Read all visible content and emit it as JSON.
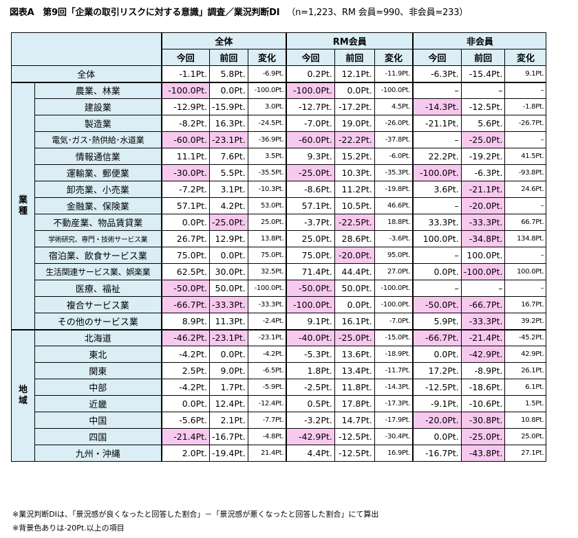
{
  "title": {
    "main": "図表A　第9回「企業の取引リスクに対する意識」調査／業況判断DI",
    "sub": "（n=1,223、RM 会員=990、非会員=233）"
  },
  "table": {
    "groups": [
      "全体",
      "RM会員",
      "非会員"
    ],
    "subheaders": [
      "今回",
      "前回",
      "変化"
    ],
    "overall_label": "全体",
    "section_industry": "業\n種",
    "section_region": "地\n域",
    "rows": [
      {
        "label": "全体",
        "section": "overall",
        "cells": [
          "-1.1Pt.",
          "5.8Pt.",
          "-6.9Pt.",
          "0.2Pt.",
          "12.1Pt.",
          "-11.9Pt.",
          "-6.3Pt.",
          "-15.4Pt.",
          "9.1Pt."
        ],
        "hl": []
      },
      {
        "label": "農業、林業",
        "section": "industry",
        "cells": [
          "-100.0Pt.",
          "0.0Pt.",
          "-100.0Pt.",
          "-100.0Pt.",
          "0.0Pt.",
          "-100.0Pt.",
          "–",
          "–",
          "–"
        ],
        "hl": [
          0,
          3
        ]
      },
      {
        "label": "建設業",
        "section": "industry",
        "cells": [
          "-12.9Pt.",
          "-15.9Pt.",
          "3.0Pt.",
          "-12.7Pt.",
          "-17.2Pt.",
          "4.5Pt.",
          "-14.3Pt.",
          "-12.5Pt.",
          "-1.8Pt."
        ],
        "hl": [
          6
        ]
      },
      {
        "label": "製造業",
        "section": "industry",
        "cells": [
          "-8.2Pt.",
          "16.3Pt.",
          "-24.5Pt.",
          "-7.0Pt.",
          "19.0Pt.",
          "-26.0Pt.",
          "-21.1Pt.",
          "5.6Pt.",
          "-26.7Pt."
        ],
        "hl": []
      },
      {
        "label": "電気･ガス･熱供給･水道業",
        "section": "industry",
        "size": "mid",
        "cells": [
          "-60.0Pt.",
          "-23.1Pt.",
          "-36.9Pt.",
          "-60.0Pt.",
          "-22.2Pt.",
          "-37.8Pt.",
          "–",
          "-25.0Pt.",
          "–"
        ],
        "hl": [
          0,
          1,
          3,
          4,
          7
        ]
      },
      {
        "label": "情報通信業",
        "section": "industry",
        "cells": [
          "11.1Pt.",
          "7.6Pt.",
          "3.5Pt.",
          "9.3Pt.",
          "15.2Pt.",
          "-6.0Pt.",
          "22.2Pt.",
          "-19.2Pt.",
          "41.5Pt."
        ],
        "hl": []
      },
      {
        "label": "運輸業、郵便業",
        "section": "industry",
        "cells": [
          "-30.0Pt.",
          "5.5Pt.",
          "-35.5Pt.",
          "-25.0Pt.",
          "10.3Pt.",
          "-35.3Pt.",
          "-100.0Pt.",
          "-6.3Pt.",
          "-93.8Pt."
        ],
        "hl": [
          0,
          3,
          6
        ]
      },
      {
        "label": "卸売業、小売業",
        "section": "industry",
        "cells": [
          "-7.2Pt.",
          "3.1Pt.",
          "-10.3Pt.",
          "-8.6Pt.",
          "11.2Pt.",
          "-19.8Pt.",
          "3.6Pt.",
          "-21.1Pt.",
          "24.6Pt."
        ],
        "hl": [
          7
        ]
      },
      {
        "label": "金融業、保険業",
        "section": "industry",
        "cells": [
          "57.1Pt.",
          "4.2Pt.",
          "53.0Pt.",
          "57.1Pt.",
          "10.5Pt.",
          "46.6Pt.",
          "–",
          "-20.0Pt.",
          "–"
        ],
        "hl": [
          7
        ]
      },
      {
        "label": "不動産業、物品賃貸業",
        "section": "industry",
        "cells": [
          "0.0Pt.",
          "-25.0Pt.",
          "25.0Pt.",
          "-3.7Pt.",
          "-22.5Pt.",
          "18.8Pt.",
          "33.3Pt.",
          "-33.3Pt.",
          "66.7Pt."
        ],
        "hl": [
          1,
          4,
          7
        ]
      },
      {
        "label": "学術研究、専門・技術サービス業",
        "section": "industry",
        "size": "small",
        "cells": [
          "26.7Pt.",
          "12.9Pt.",
          "13.8Pt.",
          "25.0Pt.",
          "28.6Pt.",
          "-3.6Pt.",
          "100.0Pt.",
          "-34.8Pt.",
          "134.8Pt."
        ],
        "hl": [
          7
        ]
      },
      {
        "label": "宿泊業、飲食サービス業",
        "section": "industry",
        "cells": [
          "75.0Pt.",
          "0.0Pt.",
          "75.0Pt.",
          "75.0Pt.",
          "-20.0Pt.",
          "95.0Pt.",
          "–",
          "100.0Pt.",
          "–"
        ],
        "hl": [
          4
        ]
      },
      {
        "label": "生活関連サービス業、娯楽業",
        "section": "industry",
        "size": "mid",
        "cells": [
          "62.5Pt.",
          "30.0Pt.",
          "32.5Pt.",
          "71.4Pt.",
          "44.4Pt.",
          "27.0Pt.",
          "0.0Pt.",
          "-100.0Pt.",
          "100.0Pt."
        ],
        "hl": [
          7
        ]
      },
      {
        "label": "医療、福祉",
        "section": "industry",
        "cells": [
          "-50.0Pt.",
          "50.0Pt.",
          "-100.0Pt.",
          "-50.0Pt.",
          "50.0Pt.",
          "-100.0Pt.",
          "–",
          "–",
          "–"
        ],
        "hl": [
          0,
          3
        ]
      },
      {
        "label": "複合サービス業",
        "section": "industry",
        "cells": [
          "-66.7Pt.",
          "-33.3Pt.",
          "-33.3Pt.",
          "-100.0Pt.",
          "0.0Pt.",
          "-100.0Pt.",
          "-50.0Pt.",
          "-66.7Pt.",
          "16.7Pt."
        ],
        "hl": [
          0,
          1,
          3,
          6,
          7
        ]
      },
      {
        "label": "その他のサービス業",
        "section": "industry",
        "cells": [
          "8.9Pt.",
          "11.3Pt.",
          "-2.4Pt.",
          "9.1Pt.",
          "16.1Pt.",
          "-7.0Pt.",
          "5.9Pt.",
          "-33.3Pt.",
          "39.2Pt."
        ],
        "hl": [
          7
        ]
      },
      {
        "label": "北海道",
        "section": "region",
        "cells": [
          "-46.2Pt.",
          "-23.1Pt.",
          "-23.1Pt.",
          "-40.0Pt.",
          "-25.0Pt.",
          "-15.0Pt.",
          "-66.7Pt.",
          "-21.4Pt.",
          "-45.2Pt."
        ],
        "hl": [
          0,
          1,
          3,
          4,
          6,
          7
        ]
      },
      {
        "label": "東北",
        "section": "region",
        "cells": [
          "-4.2Pt.",
          "0.0Pt.",
          "-4.2Pt.",
          "-5.3Pt.",
          "13.6Pt.",
          "-18.9Pt.",
          "0.0Pt.",
          "-42.9Pt.",
          "42.9Pt."
        ],
        "hl": [
          7
        ]
      },
      {
        "label": "関東",
        "section": "region",
        "cells": [
          "2.5Pt.",
          "9.0Pt.",
          "-6.5Pt.",
          "1.8Pt.",
          "13.4Pt.",
          "-11.7Pt.",
          "17.2Pt.",
          "-8.9Pt.",
          "26.1Pt."
        ],
        "hl": []
      },
      {
        "label": "中部",
        "section": "region",
        "cells": [
          "-4.2Pt.",
          "1.7Pt.",
          "-5.9Pt.",
          "-2.5Pt.",
          "11.8Pt.",
          "-14.3Pt.",
          "-12.5Pt.",
          "-18.6Pt.",
          "6.1Pt."
        ],
        "hl": []
      },
      {
        "label": "近畿",
        "section": "region",
        "cells": [
          "0.0Pt.",
          "12.4Pt.",
          "-12.4Pt.",
          "0.5Pt.",
          "17.8Pt.",
          "-17.3Pt.",
          "-9.1Pt.",
          "-10.6Pt.",
          "1.5Pt."
        ],
        "hl": []
      },
      {
        "label": "中国",
        "section": "region",
        "cells": [
          "-5.6Pt.",
          "2.1Pt.",
          "-7.7Pt.",
          "-3.2Pt.",
          "14.7Pt.",
          "-17.9Pt.",
          "-20.0Pt.",
          "-30.8Pt.",
          "10.8Pt."
        ],
        "hl": [
          6,
          7
        ]
      },
      {
        "label": "四国",
        "section": "region",
        "cells": [
          "-21.4Pt.",
          "-16.7Pt.",
          "-4.8Pt.",
          "-42.9Pt.",
          "-12.5Pt.",
          "-30.4Pt.",
          "0.0Pt.",
          "-25.0Pt.",
          "25.0Pt."
        ],
        "hl": [
          0,
          3,
          7
        ]
      },
      {
        "label": "九州・沖縄",
        "section": "region",
        "cells": [
          "2.0Pt.",
          "-19.4Pt.",
          "21.4Pt.",
          "4.4Pt.",
          "-12.5Pt.",
          "16.9Pt.",
          "-16.7Pt.",
          "-43.8Pt.",
          "27.1Pt."
        ],
        "hl": [
          7
        ]
      }
    ]
  },
  "colors": {
    "header_bg": "#dbeef6",
    "highlight_bg": "#f7c9ee"
  },
  "notes": [
    "※業況判断DIは、「景況感が良くなったと回答した割合」－「景況感が悪くなったと回答した割合」にて算出",
    "※背景色ありは-20Pt.以上の項目"
  ]
}
